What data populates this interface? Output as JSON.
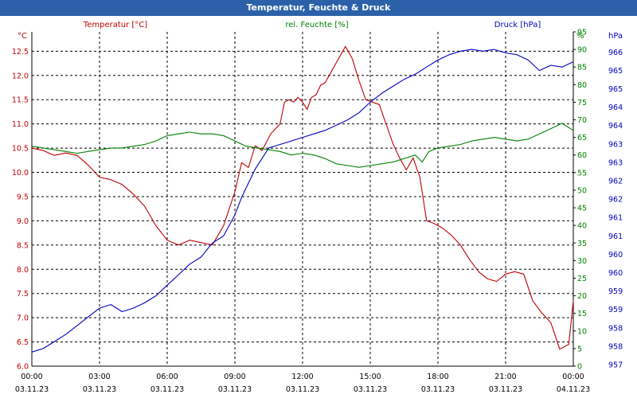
{
  "window": {
    "title": "Temperatur, Feuchte & Druck"
  },
  "chart_data": {
    "type": "line",
    "title": "Temperatur, Feuchte & Druck",
    "colors": {
      "temperature": "#c00000",
      "humidity": "#008000",
      "pressure": "#0000c0",
      "grid": "#000000"
    },
    "x_ticks": [
      {
        "time": "00:00",
        "date": "03.11.23"
      },
      {
        "time": "03:00",
        "date": "03.11.23"
      },
      {
        "time": "06:00",
        "date": "03.11.23"
      },
      {
        "time": "09:00",
        "date": "03.11.23"
      },
      {
        "time": "12:00",
        "date": "03.11.23"
      },
      {
        "time": "15:00",
        "date": "03.11.23"
      },
      {
        "time": "18:00",
        "date": "03.11.23"
      },
      {
        "time": "21:00",
        "date": "03.11.23"
      },
      {
        "time": "00:00",
        "date": "04.11.23"
      }
    ],
    "x_range_hours": [
      0,
      24
    ],
    "axes": {
      "left": {
        "label": "Temperatur [°C]",
        "unit": "°C",
        "range": [
          6.0,
          12.9
        ],
        "ticks": [
          "6.0",
          "6.5",
          "7.0",
          "7.5",
          "8.0",
          "8.5",
          "9.0",
          "9.5",
          "10.0",
          "10.5",
          "11.0",
          "11.5",
          "12.0",
          "12.5"
        ]
      },
      "mid": {
        "label": "rel. Feuchte [%]",
        "unit": "%",
        "range": [
          0,
          95
        ],
        "ticks": [
          "0",
          "5",
          "10",
          "15",
          "20",
          "25",
          "30",
          "35",
          "40",
          "45",
          "50",
          "55",
          "60",
          "65",
          "70",
          "75",
          "80",
          "85",
          "90",
          "95"
        ]
      },
      "right": {
        "label": "Druck [hPa]",
        "unit": "hPa",
        "range": [
          957,
          966.5
        ],
        "ticks": [
          "957",
          "958",
          "958",
          "959",
          "959",
          "960",
          "960",
          "961",
          "961",
          "962",
          "962",
          "963",
          "963",
          "964",
          "964",
          "965",
          "965",
          "966"
        ]
      }
    },
    "series": [
      {
        "name": "Temperatur [°C]",
        "axis": "left",
        "color": "#c00000",
        "points": [
          [
            0,
            10.5
          ],
          [
            0.5,
            10.45
          ],
          [
            1,
            10.35
          ],
          [
            1.5,
            10.4
          ],
          [
            2,
            10.35
          ],
          [
            2.5,
            10.15
          ],
          [
            3,
            9.9
          ],
          [
            3.5,
            9.85
          ],
          [
            4,
            9.75
          ],
          [
            4.5,
            9.55
          ],
          [
            5,
            9.3
          ],
          [
            5.5,
            8.9
          ],
          [
            6,
            8.6
          ],
          [
            6.5,
            8.5
          ],
          [
            7,
            8.6
          ],
          [
            7.5,
            8.55
          ],
          [
            8,
            8.5
          ],
          [
            8.5,
            8.9
          ],
          [
            9,
            9.6
          ],
          [
            9.3,
            10.2
          ],
          [
            9.6,
            10.1
          ],
          [
            9.9,
            10.55
          ],
          [
            10.2,
            10.45
          ],
          [
            10.6,
            10.8
          ],
          [
            11,
            11.0
          ],
          [
            11.2,
            11.45
          ],
          [
            11.4,
            11.5
          ],
          [
            11.6,
            11.45
          ],
          [
            11.8,
            11.55
          ],
          [
            12,
            11.45
          ],
          [
            12.2,
            11.3
          ],
          [
            12.4,
            11.55
          ],
          [
            12.6,
            11.6
          ],
          [
            12.8,
            11.8
          ],
          [
            13,
            11.85
          ],
          [
            13.3,
            12.1
          ],
          [
            13.6,
            12.35
          ],
          [
            13.9,
            12.6
          ],
          [
            14.2,
            12.35
          ],
          [
            14.5,
            11.9
          ],
          [
            14.8,
            11.5
          ],
          [
            15.1,
            11.45
          ],
          [
            15.4,
            11.4
          ],
          [
            15.7,
            11.0
          ],
          [
            16,
            10.6
          ],
          [
            16.3,
            10.3
          ],
          [
            16.6,
            10.05
          ],
          [
            16.9,
            10.3
          ],
          [
            17.2,
            9.9
          ],
          [
            17.5,
            9.0
          ],
          [
            17.8,
            8.95
          ],
          [
            18.2,
            8.85
          ],
          [
            18.6,
            8.7
          ],
          [
            19,
            8.5
          ],
          [
            19.4,
            8.2
          ],
          [
            19.8,
            7.95
          ],
          [
            20.2,
            7.8
          ],
          [
            20.6,
            7.75
          ],
          [
            21,
            7.9
          ],
          [
            21.4,
            7.95
          ],
          [
            21.8,
            7.9
          ],
          [
            22.2,
            7.35
          ],
          [
            22.6,
            7.1
          ],
          [
            23,
            6.9
          ],
          [
            23.4,
            6.35
          ],
          [
            23.8,
            6.45
          ],
          [
            24,
            7.35
          ]
        ]
      },
      {
        "name": "rel. Feuchte [%]",
        "axis": "mid",
        "color": "#008000",
        "points": [
          [
            0,
            62.5
          ],
          [
            0.5,
            62
          ],
          [
            1,
            61.5
          ],
          [
            1.5,
            61
          ],
          [
            2,
            60.5
          ],
          [
            2.5,
            61
          ],
          [
            3,
            61.5
          ],
          [
            3.5,
            62
          ],
          [
            4,
            62
          ],
          [
            4.5,
            62.5
          ],
          [
            5,
            63
          ],
          [
            5.5,
            64
          ],
          [
            6,
            65.5
          ],
          [
            6.5,
            66
          ],
          [
            7,
            66.5
          ],
          [
            7.5,
            66
          ],
          [
            8,
            66
          ],
          [
            8.5,
            65.5
          ],
          [
            9,
            64
          ],
          [
            9.5,
            62.5
          ],
          [
            10,
            62
          ],
          [
            10.5,
            61.5
          ],
          [
            11,
            61
          ],
          [
            11.5,
            60
          ],
          [
            12,
            60.5
          ],
          [
            12.5,
            60
          ],
          [
            13,
            59
          ],
          [
            13.5,
            57.5
          ],
          [
            14,
            57
          ],
          [
            14.5,
            56.5
          ],
          [
            15,
            57
          ],
          [
            15.5,
            57.5
          ],
          [
            16,
            58
          ],
          [
            16.5,
            59
          ],
          [
            17,
            60
          ],
          [
            17.3,
            58
          ],
          [
            17.6,
            61
          ],
          [
            18,
            62
          ],
          [
            18.5,
            62.5
          ],
          [
            19,
            63
          ],
          [
            19.5,
            64
          ],
          [
            20,
            64.5
          ],
          [
            20.5,
            65
          ],
          [
            21,
            64.5
          ],
          [
            21.5,
            64
          ],
          [
            22,
            64.5
          ],
          [
            22.5,
            66
          ],
          [
            23,
            67.5
          ],
          [
            23.5,
            69
          ],
          [
            24,
            67
          ]
        ]
      },
      {
        "name": "Druck [hPa]",
        "axis": "right",
        "color": "#0000c0",
        "points": [
          [
            0,
            957.4
          ],
          [
            0.5,
            957.5
          ],
          [
            1,
            957.7
          ],
          [
            1.5,
            957.9
          ],
          [
            2,
            958.15
          ],
          [
            2.5,
            958.4
          ],
          [
            3,
            958.65
          ],
          [
            3.5,
            958.75
          ],
          [
            4,
            958.55
          ],
          [
            4.5,
            958.65
          ],
          [
            5,
            958.8
          ],
          [
            5.5,
            959.0
          ],
          [
            6,
            959.3
          ],
          [
            6.5,
            959.6
          ],
          [
            7,
            959.9
          ],
          [
            7.5,
            960.1
          ],
          [
            8,
            960.5
          ],
          [
            8.5,
            960.7
          ],
          [
            9,
            961.3
          ],
          [
            9.3,
            961.8
          ],
          [
            9.6,
            962.2
          ],
          [
            9.9,
            962.6
          ],
          [
            10.2,
            962.9
          ],
          [
            10.5,
            963.2
          ],
          [
            11,
            963.3
          ],
          [
            11.5,
            963.4
          ],
          [
            12,
            963.5
          ],
          [
            12.5,
            963.6
          ],
          [
            13,
            963.7
          ],
          [
            13.5,
            963.85
          ],
          [
            14,
            964.0
          ],
          [
            14.5,
            964.2
          ],
          [
            15,
            964.5
          ],
          [
            15.5,
            964.75
          ],
          [
            16,
            964.95
          ],
          [
            16.5,
            965.15
          ],
          [
            17,
            965.3
          ],
          [
            17.5,
            965.5
          ],
          [
            18,
            965.7
          ],
          [
            18.5,
            965.85
          ],
          [
            19,
            965.95
          ],
          [
            19.5,
            966.0
          ],
          [
            20,
            965.95
          ],
          [
            20.5,
            966.0
          ],
          [
            21,
            965.9
          ],
          [
            21.5,
            965.85
          ],
          [
            22,
            965.7
          ],
          [
            22.5,
            965.4
          ],
          [
            23,
            965.55
          ],
          [
            23.5,
            965.5
          ],
          [
            24,
            965.65
          ]
        ]
      }
    ]
  }
}
